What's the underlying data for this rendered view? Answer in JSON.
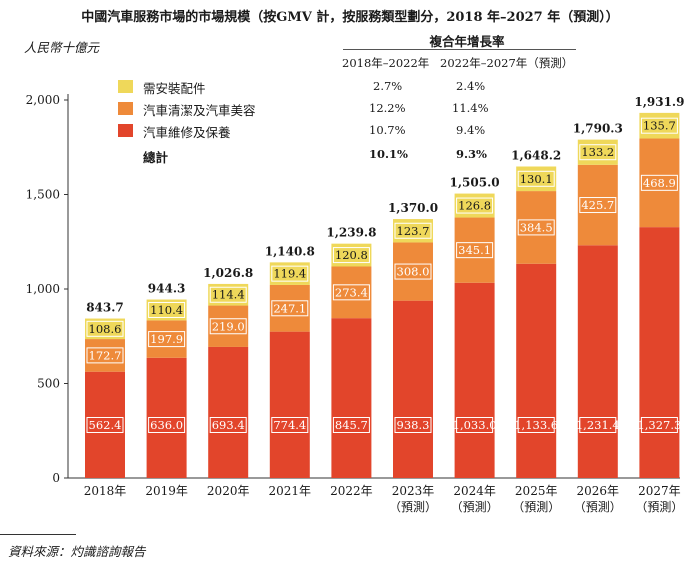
{
  "title": "中國汽車服務市場的市場規模（按GMV 計，按服務類型劃分，2018 年–2027 年（預測））",
  "unit_label": "人民幣十億元",
  "source": "資料來源：灼識諮詢報告",
  "cagr": {
    "title": "複合年增長率",
    "period1": "2018年–2022年",
    "period2": "2022年–2027年（預測）",
    "rows": [
      {
        "name": "需安裝配件",
        "p1": "2.7%",
        "p2": "2.4%"
      },
      {
        "name": "汽車清潔及汽車美容",
        "p1": "12.2%",
        "p2": "11.4%"
      },
      {
        "name": "汽車維修及保養",
        "p1": "10.7%",
        "p2": "9.4%"
      },
      {
        "name": "總計",
        "p1": "10.1%",
        "p2": "9.3%"
      }
    ]
  },
  "colors": {
    "repair": "#e2452b",
    "cleaning": "#ee8a3a",
    "accessories": "#efd85a",
    "axis": "#333333"
  },
  "chart_data": {
    "type": "bar",
    "stacked": true,
    "categories": [
      "2018年",
      "2019年",
      "2020年",
      "2021年",
      "2022年",
      "2023年",
      "2024年",
      "2025年",
      "2026年",
      "2027年"
    ],
    "category_notes": [
      "",
      "",
      "",
      "",
      "",
      "（預測）",
      "（預測）",
      "（預測）",
      "（預測）",
      "（預測）"
    ],
    "ylim": [
      0,
      2000
    ],
    "yticks": [
      0,
      500,
      1000,
      1500,
      2000
    ],
    "ytick_labels": [
      "0",
      "500",
      "1,000",
      "1,500",
      "2,000"
    ],
    "series": [
      {
        "name": "汽車維修及保養",
        "color": "#e2452b",
        "values": [
          562.4,
          636.0,
          693.4,
          774.4,
          845.7,
          938.3,
          1033.0,
          1133.6,
          1231.4,
          1327.3
        ],
        "labels": [
          "562.4",
          "636.0",
          "693.4",
          "774.4",
          "845.7",
          "938.3",
          "1,033.0",
          "1,133.6",
          "1,231.4",
          "1,327.3"
        ]
      },
      {
        "name": "汽車清潔及汽車美容",
        "color": "#ee8a3a",
        "values": [
          172.7,
          197.9,
          219.0,
          247.1,
          273.4,
          308.0,
          345.1,
          384.5,
          425.7,
          468.9
        ],
        "labels": [
          "172.7",
          "197.9",
          "219.0",
          "247.1",
          "273.4",
          "308.0",
          "345.1",
          "384.5",
          "425.7",
          "468.9"
        ]
      },
      {
        "name": "需安裝配件",
        "color": "#efd85a",
        "values": [
          108.6,
          110.4,
          114.4,
          119.4,
          120.8,
          123.7,
          126.8,
          130.1,
          133.2,
          135.7
        ],
        "labels": [
          "108.6",
          "110.4",
          "114.4",
          "119.4",
          "120.8",
          "123.7",
          "126.8",
          "130.1",
          "133.2",
          "135.7"
        ]
      }
    ],
    "totals": [
      843.7,
      944.3,
      1026.8,
      1140.8,
      1239.8,
      1370.0,
      1505.0,
      1648.2,
      1790.3,
      1931.9
    ],
    "total_labels": [
      "843.7",
      "944.3",
      "1,026.8",
      "1,140.8",
      "1,239.8",
      "1,370.0",
      "1,505.0",
      "1,648.2",
      "1,790.3",
      "1,931.9"
    ]
  }
}
